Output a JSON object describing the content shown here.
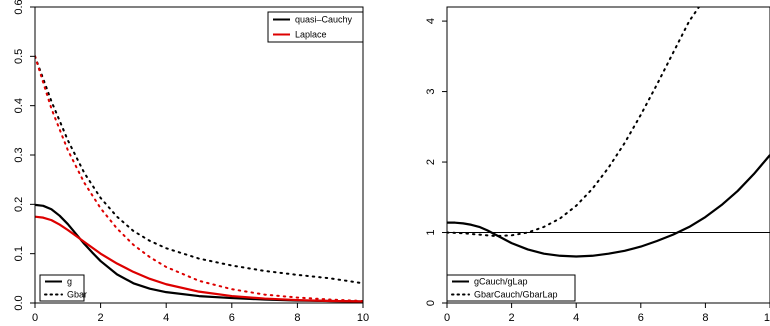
{
  "chart_data": [
    {
      "type": "line",
      "title": "",
      "xlabel": "",
      "ylabel": "",
      "xlim": [
        0,
        10
      ],
      "ylim": [
        0,
        0.6
      ],
      "x_ticks": [
        "0",
        "2",
        "4",
        "6",
        "8",
        "10"
      ],
      "y_ticks": [
        "0.0",
        "0.1",
        "0.2",
        "0.3",
        "0.4",
        "0.5",
        "0.6"
      ],
      "x_tick_values": [
        0,
        2,
        4,
        6,
        8,
        10
      ],
      "y_tick_values": [
        0,
        0.1,
        0.2,
        0.3,
        0.4,
        0.5,
        0.6
      ],
      "grid": false,
      "legends": [
        {
          "placement": "top-right",
          "entries": [
            {
              "label": "quasi–Cauchy",
              "color": "#000000",
              "style": "solid"
            },
            {
              "label": "Laplace",
              "color": "#dd0000",
              "style": "solid"
            }
          ]
        },
        {
          "placement": "bottom-left",
          "entries": [
            {
              "label": "g",
              "color": "#000000",
              "style": "solid"
            },
            {
              "label": "Gbar",
              "color": "#000000",
              "style": "dotted"
            }
          ]
        }
      ],
      "series": [
        {
          "color": "#000000",
          "style": "solid",
          "x": [
            0,
            0.25,
            0.5,
            0.75,
            1,
            1.25,
            1.5,
            1.75,
            2,
            2.5,
            3,
            3.5,
            4,
            5,
            6,
            7,
            8,
            9,
            10
          ],
          "y": [
            0.199,
            0.197,
            0.19,
            0.177,
            0.16,
            0.14,
            0.12,
            0.102,
            0.085,
            0.058,
            0.04,
            0.029,
            0.022,
            0.014,
            0.01,
            0.007,
            0.005,
            0.004,
            0.003
          ]
        },
        {
          "color": "#dd0000",
          "style": "solid",
          "x": [
            0,
            0.25,
            0.5,
            0.75,
            1,
            1.25,
            1.5,
            1.75,
            2,
            2.5,
            3,
            3.5,
            4,
            5,
            6,
            7,
            8,
            9,
            10
          ],
          "y": [
            0.175,
            0.173,
            0.168,
            0.159,
            0.148,
            0.136,
            0.124,
            0.112,
            0.1,
            0.08,
            0.063,
            0.049,
            0.038,
            0.023,
            0.014,
            0.009,
            0.006,
            0.004,
            0.003
          ]
        },
        {
          "color": "#000000",
          "style": "dotted",
          "x": [
            0,
            0.5,
            1,
            1.5,
            2,
            2.5,
            3,
            3.5,
            4,
            5,
            6,
            7,
            8,
            9,
            10
          ],
          "y": [
            0.5,
            0.409,
            0.33,
            0.264,
            0.213,
            0.175,
            0.146,
            0.126,
            0.111,
            0.09,
            0.076,
            0.065,
            0.057,
            0.05,
            0.04
          ]
        },
        {
          "color": "#dd0000",
          "style": "dotted",
          "x": [
            0,
            0.5,
            1,
            1.5,
            2,
            2.5,
            3,
            3.5,
            4,
            5,
            6,
            7,
            8,
            9,
            10
          ],
          "y": [
            0.5,
            0.394,
            0.31,
            0.244,
            0.192,
            0.151,
            0.118,
            0.093,
            0.073,
            0.045,
            0.028,
            0.017,
            0.011,
            0.007,
            0.004
          ]
        }
      ]
    },
    {
      "type": "line",
      "title": "",
      "xlabel": "",
      "ylabel": "",
      "xlim": [
        0,
        10
      ],
      "ylim": [
        0,
        4.2
      ],
      "x_ticks": [
        "0",
        "2",
        "4",
        "6",
        "8",
        "10"
      ],
      "y_ticks": [
        "0",
        "1",
        "2",
        "3",
        "4"
      ],
      "x_tick_values": [
        0,
        2,
        4,
        6,
        8,
        10
      ],
      "y_tick_values": [
        0,
        1,
        2,
        3,
        4
      ],
      "grid": false,
      "reference_line_y": 1,
      "legends": [
        {
          "placement": "bottom-left",
          "entries": [
            {
              "label": "gCauch/gLap",
              "color": "#000000",
              "style": "solid"
            },
            {
              "label": "GbarCauch/GbarLap",
              "color": "#000000",
              "style": "dotted"
            }
          ]
        }
      ],
      "series": [
        {
          "color": "#000000",
          "style": "solid",
          "x": [
            0,
            0.25,
            0.5,
            0.75,
            1,
            1.25,
            1.5,
            1.75,
            2,
            2.5,
            3,
            3.5,
            4,
            4.5,
            5,
            5.5,
            6,
            6.5,
            7,
            7.5,
            8,
            8.5,
            9,
            9.5,
            10
          ],
          "y": [
            1.14,
            1.14,
            1.13,
            1.11,
            1.08,
            1.03,
            0.97,
            0.91,
            0.85,
            0.76,
            0.7,
            0.67,
            0.66,
            0.67,
            0.7,
            0.74,
            0.8,
            0.88,
            0.97,
            1.08,
            1.22,
            1.39,
            1.59,
            1.83,
            2.1
          ]
        },
        {
          "color": "#000000",
          "style": "dotted",
          "x": [
            0,
            0.5,
            1,
            1.5,
            2,
            2.5,
            3,
            3.5,
            4,
            4.5,
            5,
            5.5,
            6,
            6.5,
            7,
            7.5,
            7.8
          ],
          "y": [
            1.0,
            0.99,
            0.97,
            0.95,
            0.96,
            1.0,
            1.08,
            1.2,
            1.38,
            1.62,
            1.92,
            2.27,
            2.67,
            3.1,
            3.55,
            4.0,
            4.2
          ]
        }
      ]
    }
  ]
}
